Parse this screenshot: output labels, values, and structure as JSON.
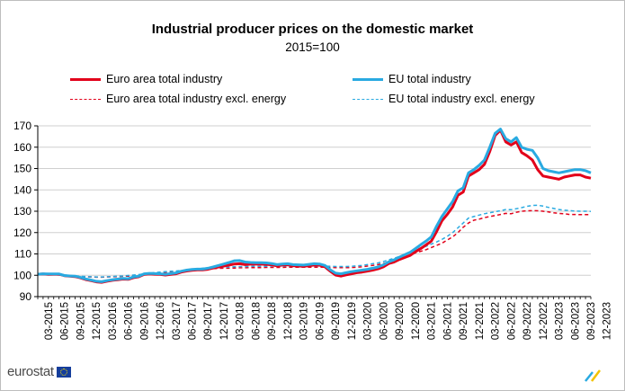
{
  "chart_data": {
    "type": "line",
    "title": "Industrial producer prices on the domestic market",
    "subtitle": "2015=100",
    "ylim": [
      90,
      170
    ],
    "yticks": [
      90,
      100,
      110,
      120,
      130,
      140,
      150,
      160,
      170
    ],
    "grid": "horizontal",
    "legend_position": "top",
    "xtick_labels": [
      "03-2015",
      "06-2015",
      "09-2015",
      "12-2015",
      "03-2016",
      "06-2016",
      "09-2016",
      "12-2016",
      "03-2017",
      "06-2017",
      "09-2017",
      "12-2017",
      "03-2018",
      "06-2018",
      "09-2018",
      "12-2018",
      "03-2019",
      "06-2019",
      "09-2019",
      "12-2019",
      "03-2020",
      "06-2020",
      "09-2020",
      "12-2020",
      "03-2021",
      "06-2021",
      "09-2021",
      "12-2021",
      "03-2022",
      "06-2022",
      "09-2022",
      "12-2022",
      "03-2023",
      "06-2023",
      "09-2023",
      "12-2023"
    ],
    "series": [
      {
        "name": "Euro area total industry",
        "color": "#e2001a",
        "style": "solid",
        "values": [
          100.5,
          100.6,
          100.4,
          100.5,
          100.5,
          99.8,
          99.6,
          99.4,
          98.8,
          98.0,
          97.5,
          96.9,
          96.7,
          97.2,
          97.6,
          97.9,
          98.2,
          98.1,
          98.9,
          99.3,
          100.4,
          100.6,
          100.5,
          100.4,
          100.1,
          100.4,
          100.7,
          101.5,
          102.0,
          102.3,
          102.5,
          102.5,
          102.8,
          103.4,
          103.9,
          104.3,
          104.8,
          105.3,
          105.4,
          105.0,
          105.2,
          105.2,
          105.2,
          105.1,
          104.9,
          104.4,
          104.8,
          104.9,
          104.5,
          104.3,
          104.2,
          104.5,
          104.8,
          104.7,
          104.0,
          101.9,
          100.1,
          99.6,
          100.2,
          100.7,
          101.2,
          101.5,
          101.9,
          102.4,
          103.0,
          104.0,
          105.5,
          106.2,
          107.4,
          108.3,
          109.3,
          111.0,
          112.5,
          114.2,
          116.0,
          120.5,
          125.5,
          128.5,
          132.0,
          137.5,
          139.0,
          146.5,
          148.0,
          149.5,
          152.0,
          158.0,
          165.5,
          168.0,
          162.5,
          161.0,
          162.5,
          157.5,
          156.0,
          154.0,
          149.5,
          146.5,
          146.0,
          145.5,
          145.0,
          146.0,
          146.5,
          147.0,
          147.0,
          146.0,
          145.5
        ],
        "x_first": "01-2015",
        "x_last": "01-2024"
      },
      {
        "name": "EU total industry",
        "color": "#29aae1",
        "style": "solid",
        "values": [
          100.5,
          100.7,
          100.6,
          100.6,
          100.6,
          99.9,
          99.7,
          99.6,
          99.0,
          98.3,
          97.8,
          97.2,
          97.0,
          97.5,
          97.9,
          98.2,
          98.5,
          98.4,
          99.2,
          99.6,
          100.7,
          100.9,
          100.8,
          100.7,
          100.5,
          100.8,
          101.1,
          101.9,
          102.4,
          102.7,
          102.9,
          102.9,
          103.3,
          103.9,
          104.6,
          105.3,
          106.0,
          106.8,
          106.9,
          106.2,
          106.0,
          105.9,
          105.9,
          105.8,
          105.5,
          105.0,
          105.3,
          105.4,
          105.0,
          104.9,
          104.8,
          105.1,
          105.4,
          105.3,
          104.6,
          102.6,
          101.0,
          100.7,
          101.2,
          101.7,
          102.1,
          102.4,
          102.8,
          103.3,
          103.9,
          104.9,
          106.3,
          107.2,
          108.5,
          109.6,
          110.7,
          112.5,
          114.3,
          116.0,
          118.0,
          123.0,
          127.5,
          131.0,
          134.5,
          139.5,
          141.0,
          148.0,
          149.5,
          151.5,
          154.0,
          160.0,
          166.5,
          168.5,
          164.0,
          162.5,
          164.5,
          160.0,
          159.0,
          158.5,
          155.0,
          150.0,
          149.0,
          148.5,
          148.0,
          148.5,
          149.0,
          149.5,
          149.5,
          149.0,
          148.0
        ],
        "x_first": "01-2015",
        "x_last": "01-2024"
      },
      {
        "name": "Euro area total industry excl. energy",
        "color": "#e2001a",
        "style": "dashed",
        "values": [
          100.4,
          100.4,
          100.4,
          100.3,
          100.1,
          100.0,
          99.8,
          99.6,
          99.4,
          99.3,
          99.2,
          99.1,
          99.1,
          99.2,
          99.3,
          99.4,
          99.5,
          99.6,
          99.8,
          100.0,
          100.3,
          100.6,
          100.9,
          101.1,
          101.3,
          101.5,
          101.6,
          101.8,
          102.0,
          102.3,
          102.6,
          102.8,
          103.0,
          103.1,
          103.2,
          103.3,
          103.3,
          103.4,
          103.5,
          103.5,
          103.6,
          103.6,
          103.6,
          103.7,
          103.7,
          103.7,
          103.7,
          103.8,
          103.8,
          103.8,
          103.8,
          103.8,
          103.8,
          103.8,
          103.8,
          103.7,
          103.6,
          103.6,
          103.6,
          103.6,
          103.8,
          104.0,
          104.3,
          104.6,
          105.0,
          105.5,
          106.3,
          107.0,
          107.8,
          108.5,
          109.5,
          110.5,
          111.2,
          112.0,
          113.0,
          114.0,
          115.0,
          116.5,
          118.0,
          120.0,
          122.5,
          124.5,
          125.8,
          126.3,
          127.0,
          127.5,
          128.0,
          128.5,
          129.0,
          128.8,
          129.5,
          130.0,
          130.2,
          130.3,
          130.2,
          130.0,
          129.7,
          129.3,
          129.0,
          128.8,
          128.5,
          128.5,
          128.4,
          128.4,
          128.4
        ],
        "x_first": "01-2015",
        "x_last": "01-2024"
      },
      {
        "name": "EU total industry excl. energy",
        "color": "#29aae1",
        "style": "dashed",
        "values": [
          100.5,
          100.5,
          100.5,
          100.4,
          100.2,
          100.1,
          99.9,
          99.7,
          99.5,
          99.4,
          99.3,
          99.2,
          99.2,
          99.3,
          99.4,
          99.6,
          99.7,
          99.9,
          100.1,
          100.3,
          100.7,
          101.0,
          101.3,
          101.5,
          101.7,
          101.9,
          102.0,
          102.2,
          102.4,
          102.7,
          103.0,
          103.3,
          103.5,
          103.6,
          103.7,
          103.8,
          103.9,
          104.0,
          104.1,
          104.1,
          104.2,
          104.2,
          104.2,
          104.2,
          104.3,
          104.3,
          104.3,
          104.3,
          104.3,
          104.3,
          104.3,
          104.3,
          104.3,
          104.3,
          104.3,
          104.2,
          104.1,
          104.1,
          104.1,
          104.2,
          104.4,
          104.6,
          105.0,
          105.4,
          105.8,
          106.4,
          107.2,
          108.0,
          108.8,
          109.7,
          110.8,
          112.0,
          112.8,
          113.6,
          114.6,
          115.6,
          116.8,
          118.2,
          120.0,
          122.2,
          124.5,
          126.8,
          127.5,
          128.2,
          128.8,
          129.3,
          129.8,
          130.2,
          130.8,
          130.7,
          131.2,
          131.7,
          132.3,
          132.7,
          132.8,
          132.4,
          131.8,
          131.3,
          130.8,
          130.5,
          130.3,
          130.1,
          130.0,
          130.0,
          129.9
        ],
        "x_first": "01-2015",
        "x_last": "01-2024"
      }
    ]
  },
  "branding": {
    "logo_text": "eurostat"
  }
}
